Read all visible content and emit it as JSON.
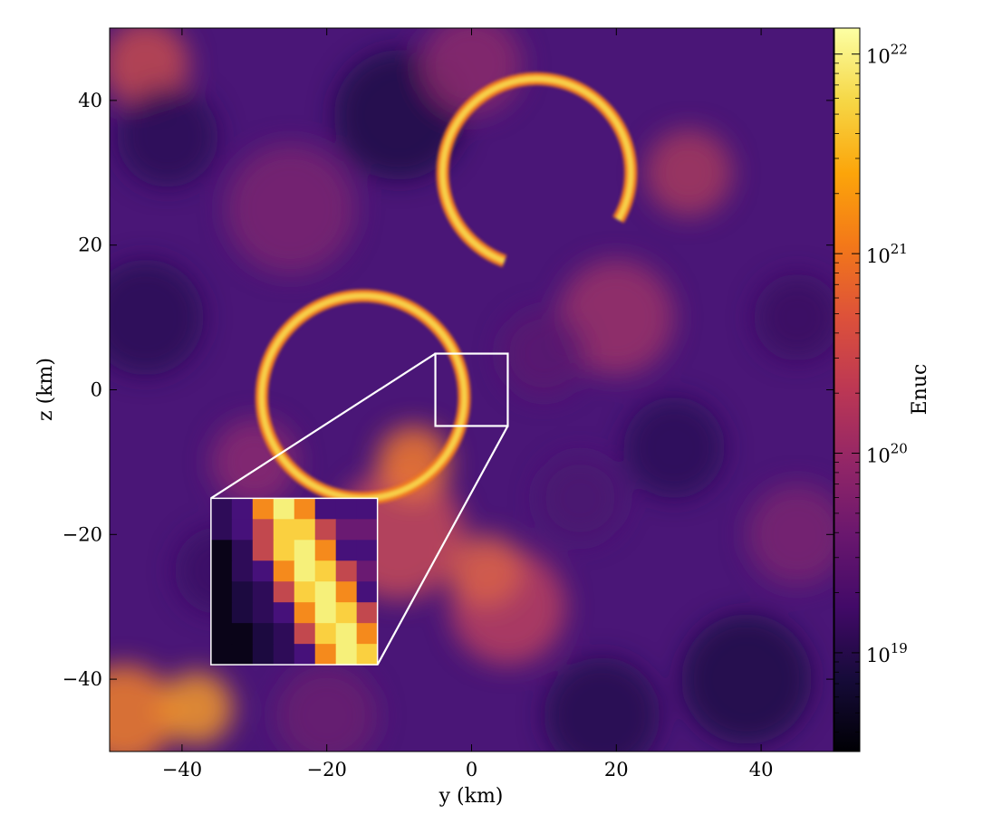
{
  "chart_data": {
    "type": "heatmap",
    "xlabel": "y  (km)",
    "ylabel": "z  (km)",
    "xlim": [
      -50,
      50
    ],
    "ylim": [
      -50,
      50
    ],
    "x_ticks": [
      -40,
      -20,
      0,
      20,
      40
    ],
    "y_ticks": [
      -40,
      -20,
      0,
      20,
      40
    ],
    "x_tick_labels": [
      "−40",
      "−20",
      "0",
      "20",
      "40"
    ],
    "y_tick_labels": [
      "−40",
      "−20",
      "0",
      "20",
      "40"
    ],
    "colormap": "inferno",
    "colorbar": {
      "label": "Enuc",
      "scale": "log",
      "range": [
        3.2e+18,
        1.35e+22
      ],
      "ticks": [
        1e+19,
        1e+20,
        1e+21,
        1e+22
      ],
      "tick_bases": [
        "10",
        "10",
        "10",
        "10"
      ],
      "tick_exponents": [
        "19",
        "20",
        "21",
        "22"
      ]
    },
    "features": [
      {
        "name": "flame-ring-upper",
        "shape": "arc",
        "center": [
          9,
          30
        ],
        "radius": 13,
        "peak_value": 1.2e+22
      },
      {
        "name": "flame-ring-lower",
        "shape": "ring",
        "center": [
          -15,
          -1
        ],
        "radius": 14,
        "peak_value": 1.2e+22
      }
    ],
    "zoom_region": {
      "x": [
        -5,
        5
      ],
      "y": [
        -5,
        5
      ]
    },
    "inset_position": {
      "x": [
        -36,
        -13
      ],
      "y": [
        -38,
        -15
      ]
    },
    "grid": false
  }
}
